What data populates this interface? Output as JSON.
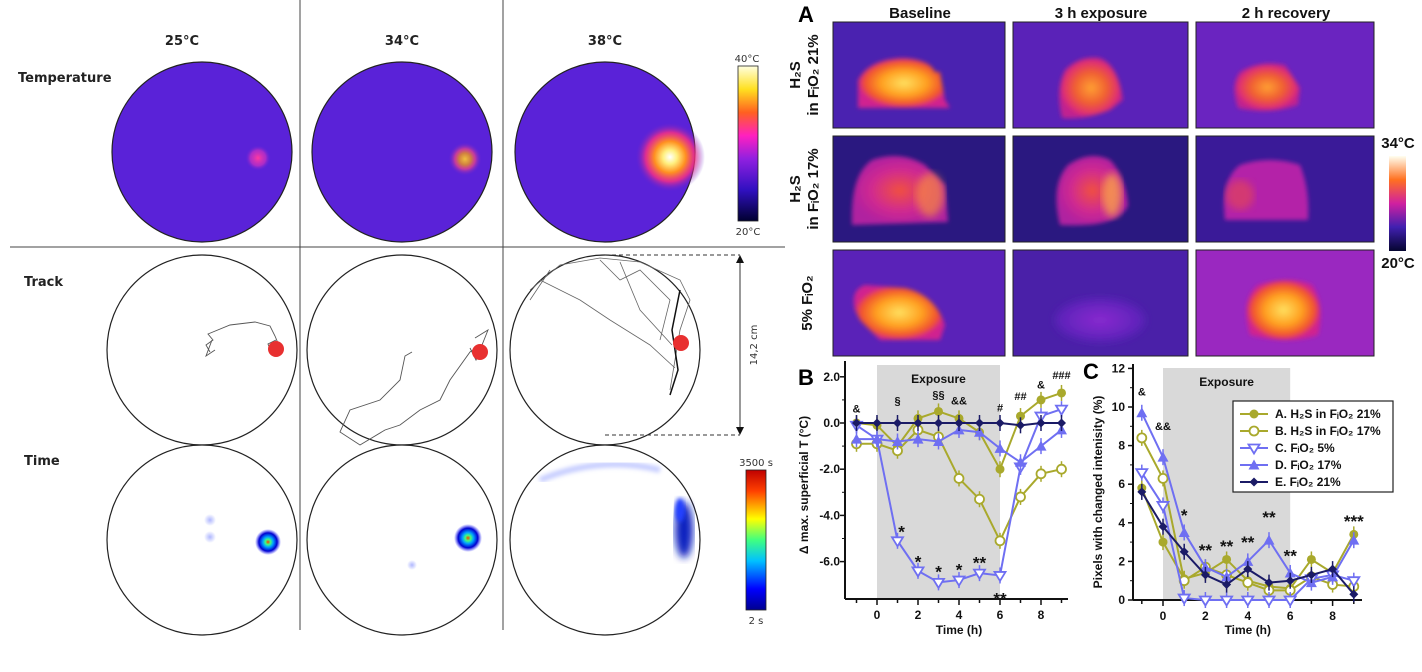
{
  "left_figure": {
    "column_headers": [
      "25°C",
      "34°C",
      "38°C"
    ],
    "row_labels": {
      "temperature": "Temperature",
      "track": "Track",
      "time": "Time"
    },
    "temperature_colorbar": {
      "max_label": "40°C",
      "min_label": "20°C"
    },
    "time_colorbar": {
      "max_label": "3500 s",
      "min_label": "2 s"
    },
    "scale_label": "14,2 cm"
  },
  "panel_a": {
    "label": "A",
    "column_headers": [
      "Baseline",
      "3 h exposure",
      "2 h recovery"
    ],
    "row_labels": [
      {
        "line1": "H₂S",
        "line2": "in FᵢO₂ 21%"
      },
      {
        "line1": "H₂S",
        "line2": "in FᵢO₂ 17%"
      },
      {
        "line1": "",
        "line2": "5% FᵢO₂"
      }
    ],
    "colorbar": {
      "max_label": "34°C",
      "min_label": "20°C"
    }
  },
  "colors": {
    "olive": "#a9a92c",
    "blue": "#6f6ff2",
    "navy": "#1b1b66",
    "exposure_shade": "#d9d9d9"
  },
  "chart_data": [
    {
      "panel_label": "B",
      "type": "line",
      "xlabel": "Time (h)",
      "ylabel": "Δ max. superficial T (°C)",
      "shaded_label": "Exposure",
      "shaded_range": [
        0,
        6
      ],
      "x": [
        -1,
        0,
        1,
        2,
        3,
        4,
        5,
        6,
        7,
        8,
        9
      ],
      "xticks": [
        0,
        2,
        4,
        6,
        8
      ],
      "yticks": [
        2.0,
        0.0,
        -2.0,
        -4.0,
        -6.0
      ],
      "ytick_labels": [
        "2.0",
        "0.0",
        "-2.0",
        "-4.0",
        "-6.0"
      ],
      "xlim": [
        -1.5,
        9.6
      ],
      "ylim": [
        -7.6,
        2.5
      ],
      "series": [
        {
          "key": "A",
          "values": [
            0.0,
            -0.1,
            -1.0,
            0.2,
            0.5,
            0.2,
            -0.4,
            -2.0,
            0.3,
            1.0,
            1.3
          ],
          "color": "#a9a92c",
          "marker": "filled-circle"
        },
        {
          "key": "B",
          "values": [
            -0.9,
            -0.9,
            -1.2,
            -0.3,
            -0.6,
            -2.4,
            -3.3,
            -5.1,
            -3.2,
            -2.2,
            -2.0
          ],
          "color": "#a9a92c",
          "marker": "open-circle"
        },
        {
          "key": "C",
          "values": [
            -0.1,
            -0.7,
            -5.1,
            -6.4,
            -6.9,
            -6.8,
            -6.5,
            -6.6,
            -1.9,
            0.3,
            0.6
          ],
          "color": "#6f6ff2",
          "marker": "open-triangle-down"
        },
        {
          "key": "D",
          "values": [
            -0.7,
            -0.7,
            -0.8,
            -0.7,
            -0.8,
            -0.3,
            -0.4,
            -1.1,
            -1.7,
            -1.0,
            -0.3
          ],
          "color": "#6f6ff2",
          "marker": "filled-triangle-up"
        },
        {
          "key": "E",
          "values": [
            0.0,
            0.0,
            0.0,
            0.0,
            0.0,
            0.0,
            0.0,
            0.0,
            -0.1,
            0.0,
            0.0
          ],
          "color": "#1b1b66",
          "marker": "filled-diamond"
        }
      ],
      "annotations": [
        {
          "text": "&",
          "x": -1,
          "y": 0.45
        },
        {
          "text": "§",
          "x": 1,
          "y": 0.8
        },
        {
          "text": "§§",
          "x": 3,
          "y": 1.05
        },
        {
          "text": "&&",
          "x": 4,
          "y": 0.8
        },
        {
          "text": "#",
          "x": 6,
          "y": 0.5
        },
        {
          "text": "##",
          "x": 7,
          "y": 1.0
        },
        {
          "text": "&",
          "x": 8,
          "y": 1.5
        },
        {
          "text": "###",
          "x": 9,
          "y": 1.9
        },
        {
          "text": "*",
          "x": 1.2,
          "y": -4.6,
          "star": true
        },
        {
          "text": "*",
          "x": 2,
          "y": -5.9,
          "star": true
        },
        {
          "text": "*",
          "x": 3,
          "y": -6.35,
          "star": true
        },
        {
          "text": "*",
          "x": 4,
          "y": -6.25,
          "star": true
        },
        {
          "text": "**",
          "x": 5,
          "y": -5.95,
          "star": true
        },
        {
          "text": "**",
          "x": 6,
          "y": -7.5,
          "star": true
        }
      ]
    },
    {
      "panel_label": "C",
      "type": "line",
      "xlabel": "Time (h)",
      "ylabel": "Pixels with changed intenisity (%)",
      "shaded_label": "Exposure",
      "shaded_range": [
        0,
        6
      ],
      "x": [
        -1,
        0,
        1,
        2,
        3,
        4,
        5,
        6,
        7,
        8,
        9
      ],
      "xticks": [
        0,
        2,
        4,
        6,
        8
      ],
      "yticks": [
        0,
        2,
        4,
        6,
        8,
        10,
        12
      ],
      "ytick_labels": [
        "0",
        "2",
        "4",
        "6",
        "8",
        "10",
        "12"
      ],
      "xlim": [
        -1.4,
        9.4
      ],
      "ylim": [
        0,
        12
      ],
      "legend_position": "top-right",
      "series": [
        {
          "key": "A",
          "name": "A. H₂S in FᵢO₂ 21%",
          "values": [
            5.8,
            3.0,
            1.1,
            1.4,
            2.1,
            1.0,
            0.7,
            0.6,
            2.1,
            1.4,
            3.4
          ],
          "color": "#a9a92c",
          "marker": "filled-circle"
        },
        {
          "key": "B",
          "name": "B. H₂S in FᵢO₂ 17%",
          "values": [
            8.4,
            6.3,
            1.0,
            1.7,
            1.3,
            0.9,
            0.5,
            0.5,
            1.2,
            0.8,
            0.7
          ],
          "color": "#a9a92c",
          "marker": "open-circle"
        },
        {
          "key": "C",
          "name": "C. FᵢO₂ 5%",
          "values": [
            6.6,
            4.9,
            0.1,
            0.0,
            0.0,
            0.0,
            0.0,
            0.0,
            1.1,
            1.3,
            1.0
          ],
          "color": "#6f6ff2",
          "marker": "open-triangle-down"
        },
        {
          "key": "D",
          "name": "D. FᵢO₂ 17%",
          "values": [
            9.7,
            7.4,
            3.5,
            1.7,
            1.2,
            2.0,
            3.1,
            1.4,
            0.9,
            1.2,
            3.1
          ],
          "color": "#6f6ff2",
          "marker": "filled-triangle-up"
        },
        {
          "key": "E",
          "name": "E. FᵢO₂ 21%",
          "values": [
            5.6,
            3.8,
            2.5,
            1.3,
            0.8,
            1.6,
            0.9,
            1.0,
            1.3,
            1.6,
            0.3
          ],
          "color": "#1b1b66",
          "marker": "filled-diamond"
        }
      ],
      "annotations": [
        {
          "text": "&",
          "x": -1,
          "y": 10.6
        },
        {
          "text": "&&",
          "x": 0,
          "y": 8.8
        },
        {
          "text": "*",
          "x": 1,
          "y": 4.5,
          "star": true
        },
        {
          "text": "**",
          "x": 2,
          "y": 2.7,
          "star": true
        },
        {
          "text": "**",
          "x": 3,
          "y": 2.9,
          "star": true
        },
        {
          "text": "**",
          "x": 4,
          "y": 3.1,
          "star": true
        },
        {
          "text": "**",
          "x": 5,
          "y": 4.4,
          "star": true
        },
        {
          "text": "**",
          "x": 6,
          "y": 2.4,
          "star": true
        },
        {
          "text": "***",
          "x": 9,
          "y": 4.2,
          "star": true
        }
      ]
    }
  ]
}
